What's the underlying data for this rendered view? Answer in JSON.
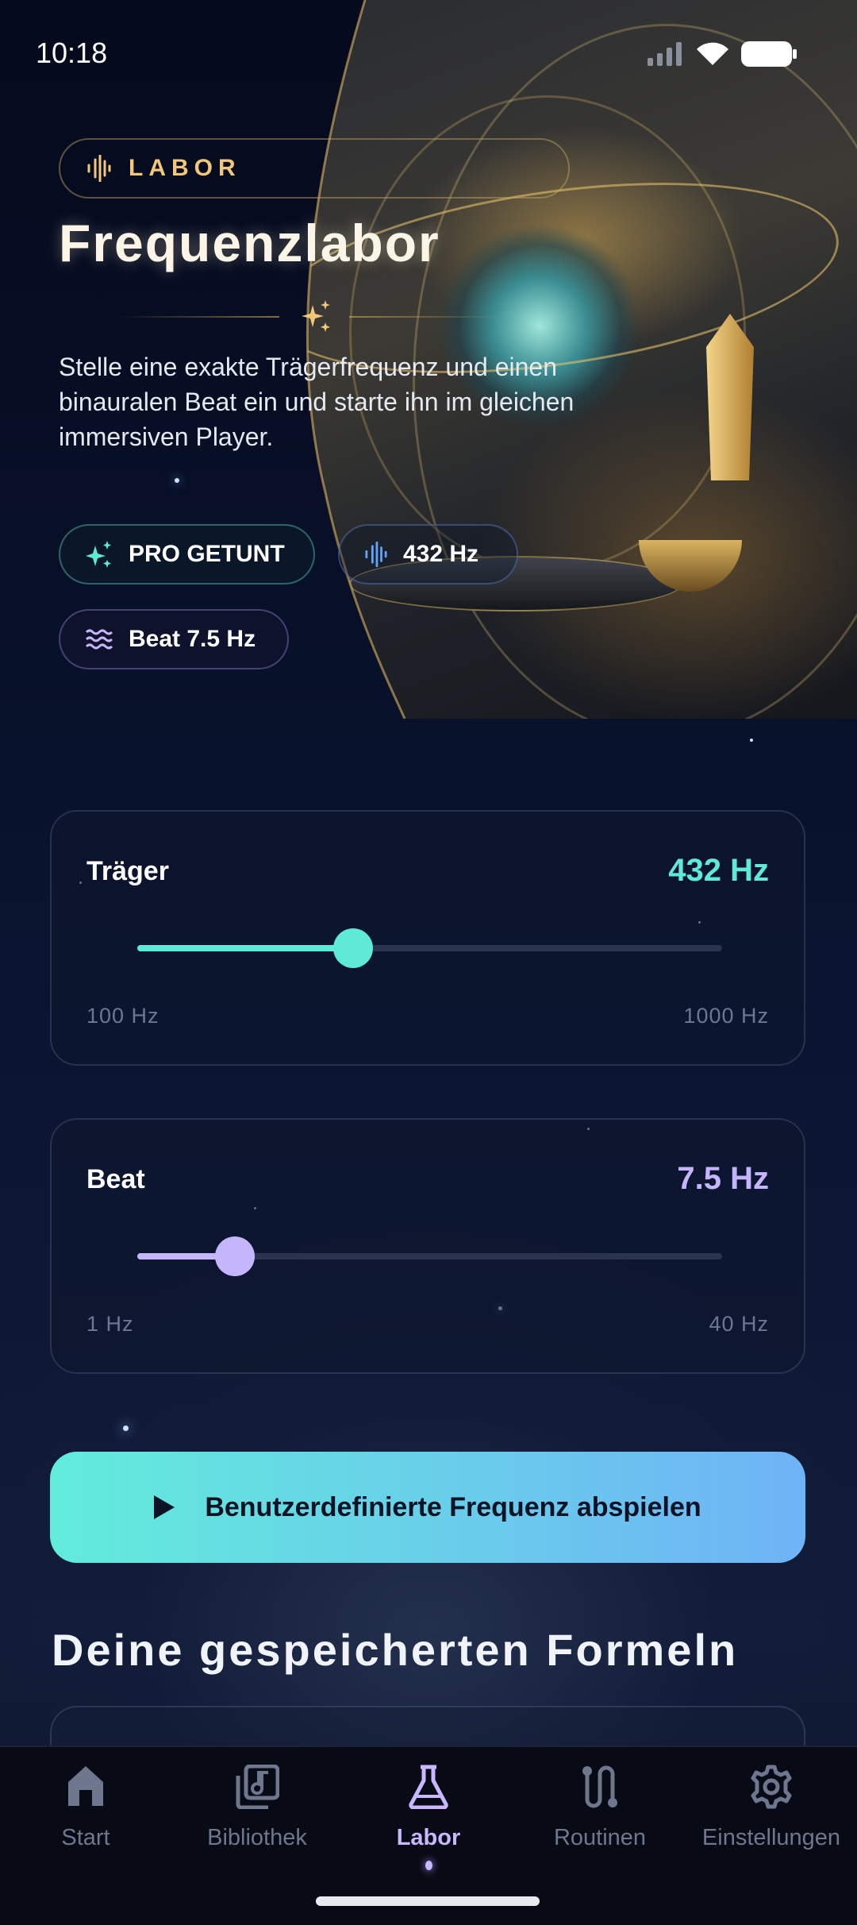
{
  "status": {
    "time": "10:18"
  },
  "header": {
    "badge": "LABOR",
    "title": "Frequenzlabor",
    "description": "Stelle eine exakte Trägerfrequenz und einen binauralen Beat ein und starte ihn im gleichen immersiven Player."
  },
  "chips": [
    {
      "label": "PRO GETUNT",
      "icon": "sparkles-icon"
    },
    {
      "label": "432 Hz",
      "icon": "waveform-icon"
    },
    {
      "label": "Beat 7.5 Hz",
      "icon": "waves-icon"
    }
  ],
  "carrier": {
    "label": "Träger",
    "value_label": "432 Hz",
    "value": 432,
    "min": 100,
    "max": 1000,
    "min_label": "100 Hz",
    "max_label": "1000 Hz",
    "color": "#5eead4"
  },
  "beat": {
    "label": "Beat",
    "value_label": "7.5 Hz",
    "value": 7.5,
    "min": 1,
    "max": 40,
    "min_label": "1 Hz",
    "max_label": "40 Hz",
    "color": "#c4b5fd"
  },
  "play_button": {
    "label": "Benutzerdefinierte Frequenz abspielen",
    "icon": "play-icon"
  },
  "saved": {
    "heading": "Deine gespeicherten Formeln"
  },
  "nav": {
    "items": [
      {
        "label": "Start",
        "icon": "home-icon"
      },
      {
        "label": "Bibliothek",
        "icon": "library-icon"
      },
      {
        "label": "Labor",
        "icon": "flask-icon",
        "active": true
      },
      {
        "label": "Routinen",
        "icon": "route-icon"
      },
      {
        "label": "Einstellungen",
        "icon": "gear-icon"
      }
    ]
  },
  "colors": {
    "accent_gold": "#f2c77a",
    "accent_teal": "#5eead4",
    "accent_violet": "#c4b5fd",
    "nav_active": "#c9b8ff"
  }
}
